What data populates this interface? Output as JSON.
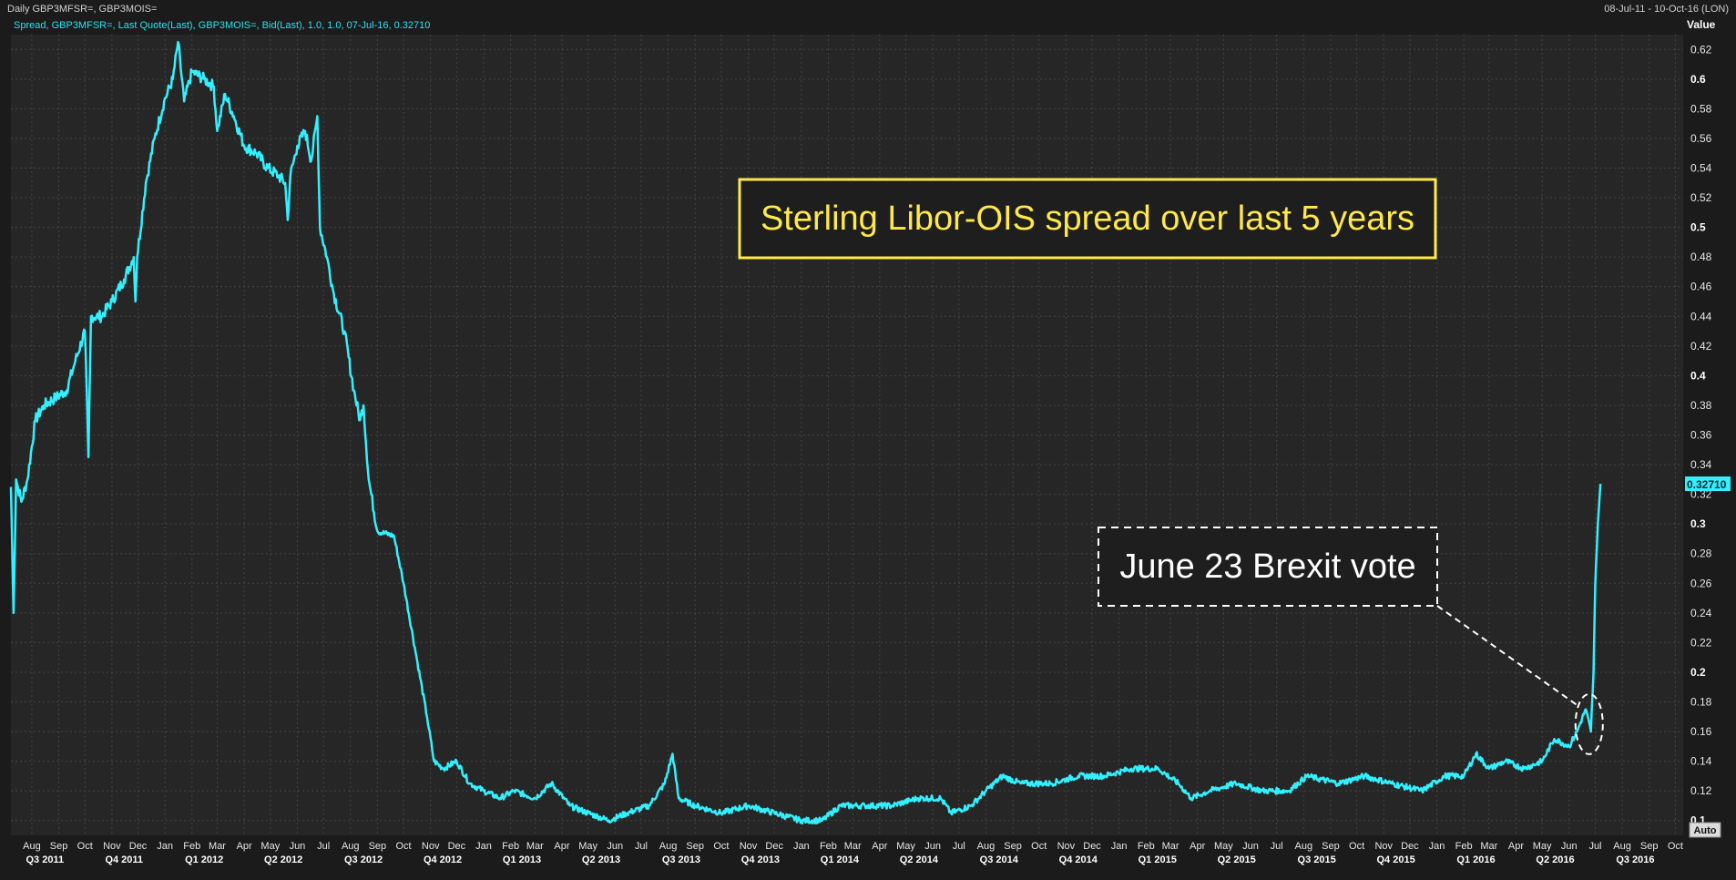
{
  "header": {
    "title": "Daily GBP3MFSR=, GBP3MOIS=",
    "date_range": "08-Jul-11 - 10-Oct-16 (LON)",
    "series_desc": "Spread, GBP3MFSR=, Last Quote(Last), GBP3MOIS=, Bid(Last),  1.0, 1.0, 07-Jul-16, 0.32710"
  },
  "axis": {
    "value_label": "Value",
    "auto_label": "Auto",
    "last_value_label": "0.32710"
  },
  "colors": {
    "background": "#1b1b1b",
    "plot_bg": "#262626",
    "grid": "#444444",
    "line": "#33f0ff",
    "title_text": "#ffe84a",
    "title_border": "#ffe84a",
    "annotation": "#ffffff"
  },
  "chart_data": {
    "type": "line",
    "title": "Sterling Libor-OIS spread over last 5 years",
    "annotation": "June 23 Brexit vote",
    "xlim": [
      "2011-07-08",
      "2016-10-10"
    ],
    "ylim": [
      0.09,
      0.63
    ],
    "y_ticks": [
      0.1,
      0.12,
      0.14,
      0.16,
      0.18,
      0.2,
      0.22,
      0.24,
      0.26,
      0.28,
      0.3,
      0.32,
      0.34,
      0.36,
      0.38,
      0.4,
      0.42,
      0.44,
      0.46,
      0.48,
      0.5,
      0.52,
      0.54,
      0.56,
      0.58,
      0.6,
      0.62
    ],
    "y_tick_labels": [
      "0.1",
      "0.12",
      "0.14",
      "0.16",
      "0.18",
      "0.2",
      "0.22",
      "0.24",
      "0.26",
      "0.28",
      "0.3",
      "0.32",
      "0.34",
      "0.36",
      "0.38",
      "0.4",
      "0.42",
      "0.44",
      "0.46",
      "0.48",
      "0.5",
      "0.52",
      "0.54",
      "0.56",
      "0.58",
      "0.6",
      "0.62"
    ],
    "y_bold_ticks": [
      "0.1",
      "0.2",
      "0.3",
      "0.4",
      "0.5",
      "0.6"
    ],
    "month_ticks": [
      {
        "date": "2011-08-01",
        "label": "Aug"
      },
      {
        "date": "2011-09-01",
        "label": "Sep"
      },
      {
        "date": "2011-10-01",
        "label": "Oct"
      },
      {
        "date": "2011-11-01",
        "label": "Nov"
      },
      {
        "date": "2011-12-01",
        "label": "Dec"
      },
      {
        "date": "2012-01-01",
        "label": "Jan"
      },
      {
        "date": "2012-02-01",
        "label": "Feb"
      },
      {
        "date": "2012-03-01",
        "label": "Mar"
      },
      {
        "date": "2012-04-01",
        "label": "Apr"
      },
      {
        "date": "2012-05-01",
        "label": "May"
      },
      {
        "date": "2012-06-01",
        "label": "Jun"
      },
      {
        "date": "2012-07-01",
        "label": "Jul"
      },
      {
        "date": "2012-08-01",
        "label": "Aug"
      },
      {
        "date": "2012-09-01",
        "label": "Sep"
      },
      {
        "date": "2012-10-01",
        "label": "Oct"
      },
      {
        "date": "2012-11-01",
        "label": "Nov"
      },
      {
        "date": "2012-12-01",
        "label": "Dec"
      },
      {
        "date": "2013-01-01",
        "label": "Jan"
      },
      {
        "date": "2013-02-01",
        "label": "Feb"
      },
      {
        "date": "2013-03-01",
        "label": "Mar"
      },
      {
        "date": "2013-04-01",
        "label": "Apr"
      },
      {
        "date": "2013-05-01",
        "label": "May"
      },
      {
        "date": "2013-06-01",
        "label": "Jun"
      },
      {
        "date": "2013-07-01",
        "label": "Jul"
      },
      {
        "date": "2013-08-01",
        "label": "Aug"
      },
      {
        "date": "2013-09-01",
        "label": "Sep"
      },
      {
        "date": "2013-10-01",
        "label": "Oct"
      },
      {
        "date": "2013-11-01",
        "label": "Nov"
      },
      {
        "date": "2013-12-01",
        "label": "Dec"
      },
      {
        "date": "2014-01-01",
        "label": "Jan"
      },
      {
        "date": "2014-02-01",
        "label": "Feb"
      },
      {
        "date": "2014-03-01",
        "label": "Mar"
      },
      {
        "date": "2014-04-01",
        "label": "Apr"
      },
      {
        "date": "2014-05-01",
        "label": "May"
      },
      {
        "date": "2014-06-01",
        "label": "Jun"
      },
      {
        "date": "2014-07-01",
        "label": "Jul"
      },
      {
        "date": "2014-08-01",
        "label": "Aug"
      },
      {
        "date": "2014-09-01",
        "label": "Sep"
      },
      {
        "date": "2014-10-01",
        "label": "Oct"
      },
      {
        "date": "2014-11-01",
        "label": "Nov"
      },
      {
        "date": "2014-12-01",
        "label": "Dec"
      },
      {
        "date": "2015-01-01",
        "label": "Jan"
      },
      {
        "date": "2015-02-01",
        "label": "Feb"
      },
      {
        "date": "2015-03-01",
        "label": "Mar"
      },
      {
        "date": "2015-04-01",
        "label": "Apr"
      },
      {
        "date": "2015-05-01",
        "label": "May"
      },
      {
        "date": "2015-06-01",
        "label": "Jun"
      },
      {
        "date": "2015-07-01",
        "label": "Jul"
      },
      {
        "date": "2015-08-01",
        "label": "Aug"
      },
      {
        "date": "2015-09-01",
        "label": "Sep"
      },
      {
        "date": "2015-10-01",
        "label": "Oct"
      },
      {
        "date": "2015-11-01",
        "label": "Nov"
      },
      {
        "date": "2015-12-01",
        "label": "Dec"
      },
      {
        "date": "2016-01-01",
        "label": "Jan"
      },
      {
        "date": "2016-02-01",
        "label": "Feb"
      },
      {
        "date": "2016-03-01",
        "label": "Mar"
      },
      {
        "date": "2016-04-01",
        "label": "Apr"
      },
      {
        "date": "2016-05-01",
        "label": "May"
      },
      {
        "date": "2016-06-01",
        "label": "Jun"
      },
      {
        "date": "2016-07-01",
        "label": "Jul"
      },
      {
        "date": "2016-08-01",
        "label": "Aug"
      },
      {
        "date": "2016-09-01",
        "label": "Sep"
      },
      {
        "date": "2016-10-01",
        "label": "Oct"
      }
    ],
    "quarter_labels": [
      {
        "date": "2011-08-16",
        "label": "Q3 2011"
      },
      {
        "date": "2011-11-15",
        "label": "Q4 2011"
      },
      {
        "date": "2012-02-15",
        "label": "Q1 2012"
      },
      {
        "date": "2012-05-16",
        "label": "Q2 2012"
      },
      {
        "date": "2012-08-16",
        "label": "Q3 2012"
      },
      {
        "date": "2012-11-15",
        "label": "Q4 2012"
      },
      {
        "date": "2013-02-14",
        "label": "Q1 2013"
      },
      {
        "date": "2013-05-16",
        "label": "Q2 2013"
      },
      {
        "date": "2013-08-16",
        "label": "Q3 2013"
      },
      {
        "date": "2013-11-15",
        "label": "Q4 2013"
      },
      {
        "date": "2014-02-14",
        "label": "Q1 2014"
      },
      {
        "date": "2014-05-16",
        "label": "Q2 2014"
      },
      {
        "date": "2014-08-16",
        "label": "Q3 2014"
      },
      {
        "date": "2014-11-15",
        "label": "Q4 2014"
      },
      {
        "date": "2015-02-14",
        "label": "Q1 2015"
      },
      {
        "date": "2015-05-16",
        "label": "Q2 2015"
      },
      {
        "date": "2015-08-16",
        "label": "Q3 2015"
      },
      {
        "date": "2015-11-15",
        "label": "Q4 2015"
      },
      {
        "date": "2016-02-15",
        "label": "Q1 2016"
      },
      {
        "date": "2016-05-16",
        "label": "Q2 2016"
      },
      {
        "date": "2016-08-16",
        "label": "Q3 2016"
      }
    ],
    "series": [
      {
        "points": [
          [
            "2011-07-08",
            0.325
          ],
          [
            "2011-07-11",
            0.24
          ],
          [
            "2011-07-14",
            0.33
          ],
          [
            "2011-07-20",
            0.315
          ],
          [
            "2011-07-27",
            0.33
          ],
          [
            "2011-08-05",
            0.37
          ],
          [
            "2011-08-15",
            0.38
          ],
          [
            "2011-08-28",
            0.385
          ],
          [
            "2011-09-10",
            0.39
          ],
          [
            "2011-09-20",
            0.41
          ],
          [
            "2011-10-01",
            0.43
          ],
          [
            "2011-10-05",
            0.345
          ],
          [
            "2011-10-08",
            0.44
          ],
          [
            "2011-10-20",
            0.44
          ],
          [
            "2011-11-01",
            0.45
          ],
          [
            "2011-11-15",
            0.465
          ],
          [
            "2011-11-26",
            0.48
          ],
          [
            "2011-11-28",
            0.45
          ],
          [
            "2011-11-30",
            0.48
          ],
          [
            "2011-12-10",
            0.53
          ],
          [
            "2011-12-20",
            0.56
          ],
          [
            "2011-12-31",
            0.585
          ],
          [
            "2012-01-10",
            0.6
          ],
          [
            "2012-01-16",
            0.625
          ],
          [
            "2012-01-23",
            0.585
          ],
          [
            "2012-02-01",
            0.605
          ],
          [
            "2012-02-15",
            0.6
          ],
          [
            "2012-02-26",
            0.595
          ],
          [
            "2012-03-01",
            0.565
          ],
          [
            "2012-03-10",
            0.59
          ],
          [
            "2012-03-20",
            0.575
          ],
          [
            "2012-04-01",
            0.555
          ],
          [
            "2012-04-15",
            0.55
          ],
          [
            "2012-04-28",
            0.54
          ],
          [
            "2012-05-10",
            0.535
          ],
          [
            "2012-05-18",
            0.53
          ],
          [
            "2012-05-21",
            0.505
          ],
          [
            "2012-05-24",
            0.535
          ],
          [
            "2012-06-01",
            0.555
          ],
          [
            "2012-06-10",
            0.565
          ],
          [
            "2012-06-17",
            0.545
          ],
          [
            "2012-06-24",
            0.575
          ],
          [
            "2012-06-27",
            0.5
          ],
          [
            "2012-07-05",
            0.48
          ],
          [
            "2012-07-13",
            0.455
          ],
          [
            "2012-07-25",
            0.43
          ],
          [
            "2012-08-05",
            0.39
          ],
          [
            "2012-08-12",
            0.37
          ],
          [
            "2012-08-16",
            0.38
          ],
          [
            "2012-08-22",
            0.33
          ],
          [
            "2012-09-01",
            0.295
          ],
          [
            "2012-09-20",
            0.292
          ],
          [
            "2012-10-01",
            0.26
          ],
          [
            "2012-10-16",
            0.21
          ],
          [
            "2012-10-28",
            0.17
          ],
          [
            "2012-11-05",
            0.14
          ],
          [
            "2012-11-16",
            0.135
          ],
          [
            "2012-12-01",
            0.14
          ],
          [
            "2012-12-16",
            0.125
          ],
          [
            "2013-01-01",
            0.12
          ],
          [
            "2013-01-20",
            0.115
          ],
          [
            "2013-02-05",
            0.12
          ],
          [
            "2013-03-01",
            0.115
          ],
          [
            "2013-03-20",
            0.125
          ],
          [
            "2013-04-10",
            0.11
          ],
          [
            "2013-05-01",
            0.105
          ],
          [
            "2013-05-25",
            0.1
          ],
          [
            "2013-06-15",
            0.105
          ],
          [
            "2013-07-10",
            0.11
          ],
          [
            "2013-07-28",
            0.125
          ],
          [
            "2013-08-06",
            0.145
          ],
          [
            "2013-08-13",
            0.115
          ],
          [
            "2013-09-01",
            0.11
          ],
          [
            "2013-10-01",
            0.105
          ],
          [
            "2013-11-01",
            0.11
          ],
          [
            "2013-12-01",
            0.105
          ],
          [
            "2014-01-01",
            0.1
          ],
          [
            "2014-01-25",
            0.1
          ],
          [
            "2014-02-15",
            0.11
          ],
          [
            "2014-03-15",
            0.11
          ],
          [
            "2014-04-15",
            0.11
          ],
          [
            "2014-05-15",
            0.115
          ],
          [
            "2014-06-10",
            0.115
          ],
          [
            "2014-06-22",
            0.105
          ],
          [
            "2014-07-15",
            0.11
          ],
          [
            "2014-08-01",
            0.12
          ],
          [
            "2014-08-20",
            0.13
          ],
          [
            "2014-09-10",
            0.125
          ],
          [
            "2014-10-15",
            0.125
          ],
          [
            "2014-11-15",
            0.13
          ],
          [
            "2014-12-15",
            0.13
          ],
          [
            "2015-01-15",
            0.135
          ],
          [
            "2015-02-15",
            0.135
          ],
          [
            "2015-03-10",
            0.125
          ],
          [
            "2015-03-25",
            0.115
          ],
          [
            "2015-04-15",
            0.12
          ],
          [
            "2015-05-15",
            0.125
          ],
          [
            "2015-06-15",
            0.12
          ],
          [
            "2015-07-15",
            0.12
          ],
          [
            "2015-08-05",
            0.13
          ],
          [
            "2015-09-10",
            0.125
          ],
          [
            "2015-10-10",
            0.13
          ],
          [
            "2015-11-10",
            0.125
          ],
          [
            "2015-12-15",
            0.12
          ],
          [
            "2016-01-10",
            0.13
          ],
          [
            "2016-02-01",
            0.13
          ],
          [
            "2016-02-15",
            0.145
          ],
          [
            "2016-03-01",
            0.135
          ],
          [
            "2016-03-20",
            0.14
          ],
          [
            "2016-04-10",
            0.135
          ],
          [
            "2016-05-01",
            0.14
          ],
          [
            "2016-05-15",
            0.155
          ],
          [
            "2016-06-01",
            0.15
          ],
          [
            "2016-06-10",
            0.16
          ],
          [
            "2016-06-20",
            0.175
          ],
          [
            "2016-06-26",
            0.16
          ],
          [
            "2016-06-29",
            0.2
          ],
          [
            "2016-07-01",
            0.26
          ],
          [
            "2016-07-04",
            0.3
          ],
          [
            "2016-07-07",
            0.3271
          ]
        ]
      }
    ]
  }
}
